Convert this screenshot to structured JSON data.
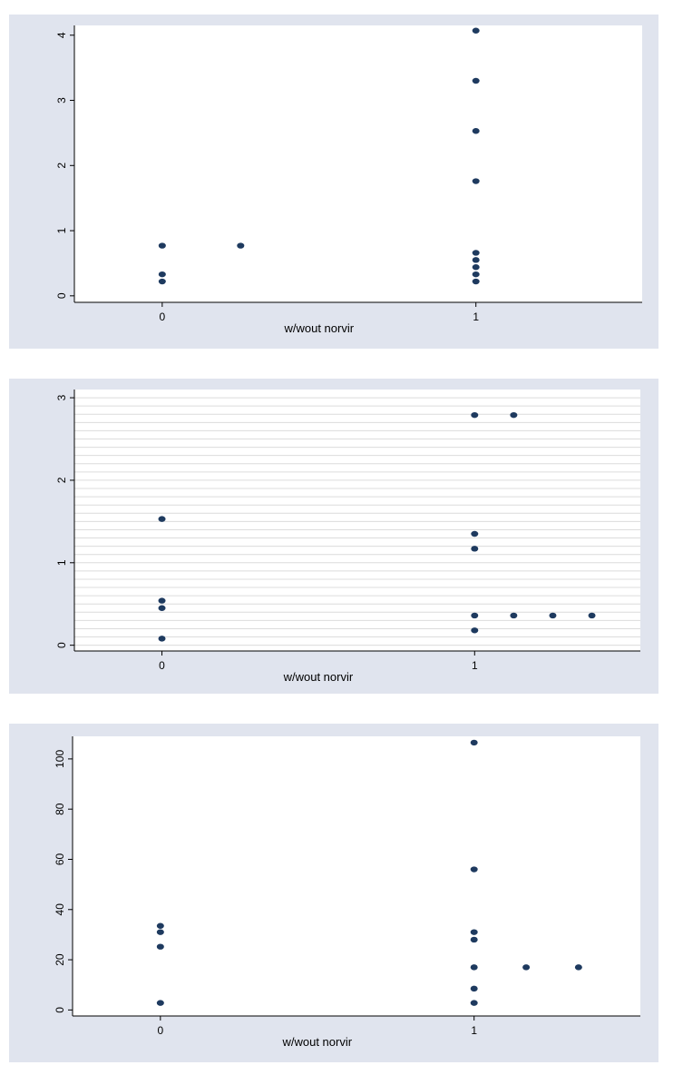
{
  "chart_data": [
    {
      "type": "scatter",
      "xlabel": "w/wout norvir",
      "ylabel": "",
      "x_ticks": [
        "0",
        "1"
      ],
      "y_ticks": [
        "0",
        "1",
        "2",
        "3",
        "4"
      ],
      "xlim": [
        -0.28,
        1.53
      ],
      "ylim": [
        -0.1,
        4.15
      ],
      "grid": false,
      "points": [
        {
          "x": 0,
          "y": 0.77
        },
        {
          "x": 0,
          "y": 0.33
        },
        {
          "x": 0,
          "y": 0.22
        },
        {
          "x": 0.25,
          "y": 0.77
        },
        {
          "x": 1,
          "y": 4.07
        },
        {
          "x": 1,
          "y": 3.3
        },
        {
          "x": 1,
          "y": 2.53
        },
        {
          "x": 1,
          "y": 1.76
        },
        {
          "x": 1,
          "y": 0.66
        },
        {
          "x": 1,
          "y": 0.55
        },
        {
          "x": 1,
          "y": 0.44
        },
        {
          "x": 1,
          "y": 0.33
        },
        {
          "x": 1,
          "y": 0.22
        }
      ],
      "colors": {
        "marker": "#1e3a5f",
        "plot_bg": "#ffffff",
        "outer_bg": "#e0e4ee"
      }
    },
    {
      "type": "scatter",
      "xlabel": "w/wout norvir",
      "ylabel": "",
      "x_ticks": [
        "0",
        "1"
      ],
      "y_ticks": [
        "0",
        "1",
        "2",
        "3"
      ],
      "xlim": [
        -0.28,
        1.53
      ],
      "ylim": [
        -0.07,
        3.1
      ],
      "grid": true,
      "points": [
        {
          "x": 0,
          "y": 1.53
        },
        {
          "x": 0,
          "y": 0.54
        },
        {
          "x": 0,
          "y": 0.45
        },
        {
          "x": 0,
          "y": 0.08
        },
        {
          "x": 1,
          "y": 2.79
        },
        {
          "x": 1.125,
          "y": 2.79
        },
        {
          "x": 1,
          "y": 1.35
        },
        {
          "x": 1,
          "y": 1.17
        },
        {
          "x": 1,
          "y": 0.36
        },
        {
          "x": 1.125,
          "y": 0.36
        },
        {
          "x": 1.25,
          "y": 0.36
        },
        {
          "x": 1.375,
          "y": 0.36
        },
        {
          "x": 1,
          "y": 0.18
        }
      ],
      "colors": {
        "marker": "#1e3a5f",
        "plot_bg": "#ffffff",
        "outer_bg": "#e0e4ee",
        "grid": "#dcdcdc"
      }
    },
    {
      "type": "scatter",
      "xlabel": "w/wout norvir",
      "ylabel": "",
      "x_ticks": [
        "0",
        "1"
      ],
      "y_ticks": [
        "0",
        "20",
        "40",
        "60",
        "80",
        "100"
      ],
      "xlim": [
        -0.28,
        1.53
      ],
      "ylim": [
        -2.4,
        109
      ],
      "grid": false,
      "points": [
        {
          "x": 0,
          "y": 33.5
        },
        {
          "x": 0,
          "y": 31
        },
        {
          "x": 0,
          "y": 25.2
        },
        {
          "x": 0,
          "y": 2.8
        },
        {
          "x": 1,
          "y": 106.5
        },
        {
          "x": 1,
          "y": 56
        },
        {
          "x": 1,
          "y": 31
        },
        {
          "x": 1,
          "y": 28
        },
        {
          "x": 1,
          "y": 17
        },
        {
          "x": 1.166,
          "y": 17
        },
        {
          "x": 1.333,
          "y": 17
        },
        {
          "x": 1,
          "y": 8.5
        },
        {
          "x": 1,
          "y": 2.8
        }
      ],
      "colors": {
        "marker": "#1e3a5f",
        "plot_bg": "#ffffff",
        "outer_bg": "#e0e4ee"
      }
    }
  ]
}
